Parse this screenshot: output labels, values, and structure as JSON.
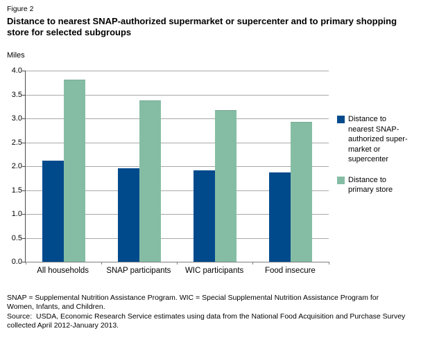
{
  "header": {
    "figure_label": "Figure 2",
    "title_lines": [
      "Distance to nearest SNAP-authorized supermarket or supercenter and to primary shopping",
      "store for selected subgroups"
    ]
  },
  "chart_data": {
    "type": "bar",
    "title": "Distance to nearest SNAP-authorized supermarket or supercenter and to primary shopping store for selected subgroups",
    "xlabel": "",
    "ylabel": "Miles",
    "categories": [
      "All households",
      "SNAP participants",
      "WIC participants",
      "Food insecure"
    ],
    "series": [
      {
        "name": "Distance to nearest SNAP-authorized supermarket or supercenter",
        "color": "#004a8c",
        "values": [
          2.12,
          1.96,
          1.92,
          1.87
        ]
      },
      {
        "name": "Distance to primary store",
        "color": "#85bda4",
        "values": [
          3.8,
          3.36,
          3.16,
          2.91
        ]
      }
    ],
    "ylim": [
      0,
      4.0
    ],
    "y_ticks": [
      "0.0",
      "0.5",
      "1.0",
      "1.5",
      "2.0",
      "2.5",
      "3.0",
      "3.5",
      "4.0"
    ],
    "grid": "horizontal",
    "gridline_color": "#a8a8a8",
    "legend": {
      "position": "right",
      "entries": [
        {
          "color": "#004a8c",
          "lines": [
            "Distance to",
            "nearest SNAP-",
            "authorized super-",
            "market or",
            "supercenter"
          ]
        },
        {
          "color": "#85bda4",
          "lines": [
            "Distance to",
            "primary store"
          ]
        }
      ]
    }
  },
  "footer": {
    "lines": [
      "SNAP = Supplemental Nutrition Assistance Program. WIC = Special Supplemental Nutrition Assistance Program for",
      "Women, Infants, and Children.",
      "Source:  USDA, Economic Research Service estimates using data from the National Food Acquisition and Purchase Survey",
      "collected April 2012-January 2013."
    ]
  }
}
